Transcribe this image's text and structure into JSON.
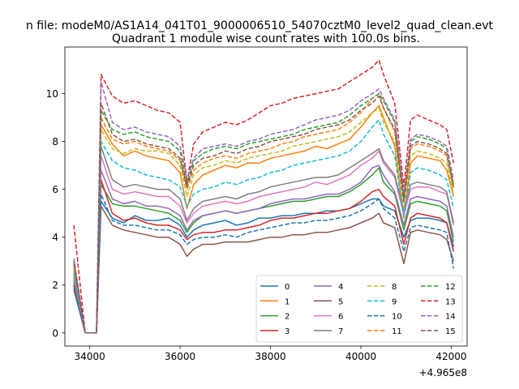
{
  "figure_title": "n file: modeM0/AS1A14_041T01_9000006510_54070cztM0_level2_quad_clean.evt",
  "chart_data": {
    "type": "line",
    "title": "Quadrant 1 module wise count rates with 100.0s bins.",
    "xlabel": "",
    "ylabel": "",
    "x_offset_label": "+4.965e8",
    "xlim": [
      33450,
      42350
    ],
    "ylim": [
      -0.55,
      11.95
    ],
    "x_ticks": [
      34000,
      36000,
      38000,
      40000,
      42000
    ],
    "x_tick_labels": [
      "34000",
      "36000",
      "38000",
      "40000",
      "42000"
    ],
    "y_ticks": [
      0,
      2,
      4,
      6,
      8,
      10
    ],
    "y_tick_labels": [
      "0",
      "2",
      "4",
      "6",
      "8",
      "10"
    ],
    "grid": false,
    "legend_placement": "lower-right",
    "legend_columns": 4,
    "x": [
      33650,
      33900,
      34150,
      34250,
      34500,
      34750,
      35000,
      35250,
      35500,
      35750,
      36000,
      36150,
      36300,
      36500,
      36750,
      37000,
      37250,
      37500,
      37750,
      38000,
      38250,
      38500,
      38750,
      39000,
      39250,
      39500,
      39750,
      40000,
      40250,
      40400,
      40500,
      40750,
      40950,
      41100,
      41250,
      41500,
      41750,
      41900,
      42050
    ],
    "series": [
      {
        "name": "0",
        "color": "#1f77b4",
        "dash": "solid",
        "values": [
          2.0,
          0,
          0,
          5.5,
          4.8,
          4.6,
          4.9,
          4.7,
          4.7,
          4.8,
          4.5,
          4.0,
          4.3,
          4.5,
          4.6,
          4.7,
          4.5,
          4.6,
          4.8,
          4.8,
          4.9,
          4.9,
          5.0,
          5.0,
          5.1,
          5.1,
          5.2,
          5.4,
          5.6,
          5.6,
          5.3,
          5.1,
          4.0,
          4.7,
          4.8,
          4.8,
          4.7,
          4.6,
          3.6
        ]
      },
      {
        "name": "1",
        "color": "#ff7f0e",
        "dash": "solid",
        "values": [
          2.6,
          0,
          0,
          8.7,
          7.9,
          7.4,
          7.6,
          7.4,
          7.3,
          7.2,
          6.7,
          5.2,
          6.2,
          6.6,
          6.8,
          7.0,
          6.9,
          7.1,
          7.1,
          7.3,
          7.4,
          7.5,
          7.6,
          7.8,
          7.7,
          7.9,
          8.1,
          8.6,
          9.2,
          9.5,
          9.0,
          7.8,
          4.8,
          7.1,
          7.4,
          7.3,
          7.2,
          6.8,
          5.7
        ]
      },
      {
        "name": "2",
        "color": "#2ca02c",
        "dash": "solid",
        "values": [
          2.1,
          0,
          0,
          6.2,
          5.4,
          5.3,
          5.3,
          5.2,
          5.1,
          5.0,
          4.7,
          4.2,
          4.6,
          4.9,
          5.0,
          5.1,
          5.0,
          5.1,
          5.2,
          5.3,
          5.4,
          5.5,
          5.5,
          5.6,
          5.7,
          5.7,
          5.9,
          6.2,
          6.6,
          6.9,
          6.3,
          5.8,
          4.3,
          5.4,
          5.5,
          5.4,
          5.3,
          5.1,
          3.8
        ]
      },
      {
        "name": "3",
        "color": "#d62728",
        "dash": "solid",
        "values": [
          2.0,
          0,
          0,
          6.4,
          5.0,
          4.7,
          4.8,
          4.6,
          4.5,
          4.5,
          4.3,
          3.9,
          4.1,
          4.2,
          4.2,
          4.3,
          4.3,
          4.4,
          4.5,
          4.7,
          4.8,
          4.8,
          4.9,
          5.0,
          5.0,
          5.1,
          5.2,
          5.5,
          5.9,
          6.0,
          5.7,
          5.3,
          3.7,
          4.8,
          5.0,
          4.9,
          4.8,
          4.6,
          3.4
        ]
      },
      {
        "name": "4",
        "color": "#9467bd",
        "dash": "solid",
        "values": [
          2.2,
          0,
          0,
          6.8,
          5.6,
          5.4,
          5.5,
          5.3,
          5.3,
          5.2,
          4.9,
          4.3,
          4.7,
          4.9,
          5.0,
          5.1,
          5.0,
          5.1,
          5.2,
          5.4,
          5.5,
          5.6,
          5.6,
          5.7,
          5.8,
          5.8,
          6.0,
          6.3,
          6.9,
          7.0,
          6.6,
          5.9,
          4.5,
          5.6,
          5.7,
          5.6,
          5.5,
          5.3,
          4.0
        ]
      },
      {
        "name": "5",
        "color": "#8c564b",
        "dash": "solid",
        "values": [
          1.8,
          0,
          0,
          5.3,
          4.5,
          4.3,
          4.2,
          4.1,
          4.0,
          4.0,
          3.7,
          3.2,
          3.5,
          3.7,
          3.7,
          3.8,
          3.8,
          3.8,
          3.9,
          4.0,
          4.0,
          4.1,
          4.1,
          4.2,
          4.2,
          4.3,
          4.4,
          4.6,
          4.8,
          5.0,
          4.6,
          4.4,
          2.9,
          4.2,
          4.3,
          4.2,
          4.1,
          3.9,
          3.0
        ]
      },
      {
        "name": "6",
        "color": "#e377c2",
        "dash": "solid",
        "values": [
          2.3,
          0,
          0,
          7.4,
          6.0,
          5.8,
          5.9,
          5.8,
          5.7,
          5.7,
          5.3,
          4.6,
          5.0,
          5.3,
          5.4,
          5.5,
          5.4,
          5.5,
          5.7,
          5.8,
          5.9,
          6.0,
          6.1,
          6.3,
          6.2,
          6.4,
          6.6,
          7.0,
          7.3,
          7.6,
          7.1,
          6.5,
          4.9,
          6.0,
          6.1,
          6.1,
          5.9,
          5.8,
          4.5
        ]
      },
      {
        "name": "7",
        "color": "#7f7f7f",
        "dash": "solid",
        "values": [
          2.4,
          0,
          0,
          7.8,
          6.4,
          6.1,
          6.2,
          6.1,
          6.0,
          6.0,
          5.6,
          4.7,
          5.2,
          5.5,
          5.6,
          5.7,
          5.6,
          5.8,
          5.9,
          6.1,
          6.2,
          6.3,
          6.4,
          6.5,
          6.5,
          6.6,
          6.9,
          7.2,
          7.5,
          7.7,
          7.2,
          6.6,
          5.1,
          6.2,
          6.3,
          6.2,
          6.1,
          5.9,
          4.6
        ]
      },
      {
        "name": "8",
        "color": "#bcbd22",
        "dash": "dashed",
        "values": [
          2.7,
          0,
          0,
          8.5,
          7.7,
          7.5,
          7.7,
          7.6,
          7.6,
          7.5,
          7.0,
          5.7,
          6.6,
          6.9,
          7.0,
          7.2,
          7.1,
          7.3,
          7.4,
          7.5,
          7.6,
          7.8,
          7.9,
          8.0,
          8.1,
          8.2,
          8.4,
          8.8,
          9.2,
          9.4,
          8.8,
          8.0,
          5.2,
          7.4,
          7.6,
          7.5,
          7.3,
          7.1,
          5.8
        ]
      },
      {
        "name": "9",
        "color": "#17becf",
        "dash": "dashed",
        "values": [
          2.5,
          0,
          0,
          8.0,
          7.2,
          6.9,
          6.8,
          6.6,
          6.5,
          6.4,
          6.1,
          5.3,
          5.8,
          6.0,
          6.1,
          6.3,
          6.2,
          6.4,
          6.5,
          6.7,
          6.8,
          7.0,
          7.1,
          7.2,
          7.3,
          7.4,
          7.6,
          8.0,
          8.6,
          8.9,
          8.3,
          7.4,
          4.9,
          6.7,
          6.9,
          6.8,
          6.6,
          6.4,
          5.2
        ]
      },
      {
        "name": "10",
        "color": "#1f77b4",
        "dash": "dashed",
        "values": [
          1.9,
          0,
          0,
          5.8,
          4.7,
          4.5,
          4.5,
          4.4,
          4.3,
          4.3,
          4.1,
          3.7,
          3.9,
          4.0,
          4.0,
          4.1,
          4.0,
          4.2,
          4.3,
          4.4,
          4.5,
          4.6,
          4.6,
          4.7,
          4.7,
          4.8,
          4.9,
          5.1,
          5.4,
          5.6,
          5.2,
          4.8,
          3.4,
          4.4,
          4.5,
          4.4,
          4.3,
          4.2,
          2.7
        ]
      },
      {
        "name": "11",
        "color": "#ff7f0e",
        "dash": "dashed",
        "values": [
          2.8,
          0,
          0,
          9.0,
          8.1,
          7.9,
          8.0,
          7.8,
          7.7,
          7.6,
          7.2,
          6.0,
          6.8,
          7.1,
          7.3,
          7.4,
          7.3,
          7.5,
          7.6,
          7.7,
          7.9,
          8.0,
          8.2,
          8.3,
          8.4,
          8.5,
          8.8,
          9.2,
          9.8,
          10.0,
          9.4,
          8.4,
          5.5,
          7.7,
          7.9,
          7.8,
          7.6,
          7.4,
          6.0
        ]
      },
      {
        "name": "12",
        "color": "#2ca02c",
        "dash": "dashed",
        "values": [
          3.0,
          0,
          0,
          9.3,
          8.5,
          8.3,
          8.4,
          8.2,
          8.1,
          8.0,
          7.6,
          6.2,
          7.2,
          7.5,
          7.7,
          7.8,
          7.7,
          7.9,
          8.0,
          8.1,
          8.2,
          8.3,
          8.5,
          8.6,
          8.7,
          8.8,
          9.1,
          9.5,
          9.8,
          10.0,
          9.7,
          8.8,
          5.6,
          8.0,
          8.2,
          8.1,
          7.9,
          7.7,
          6.2
        ]
      },
      {
        "name": "13",
        "color": "#d62728",
        "dash": "dashed",
        "values": [
          4.5,
          0,
          0,
          10.8,
          9.9,
          9.6,
          9.7,
          9.5,
          9.3,
          9.2,
          8.8,
          6.3,
          7.9,
          8.4,
          8.6,
          8.8,
          8.7,
          8.9,
          9.2,
          9.5,
          9.6,
          9.8,
          9.9,
          10.0,
          10.1,
          10.2,
          10.5,
          10.8,
          11.1,
          11.4,
          10.8,
          9.6,
          6.1,
          8.9,
          9.1,
          8.9,
          8.7,
          8.5,
          7.1
        ]
      },
      {
        "name": "14",
        "color": "#9467bd",
        "dash": "dashed",
        "values": [
          3.1,
          0,
          0,
          10.5,
          8.8,
          8.5,
          8.6,
          8.4,
          8.3,
          8.2,
          7.8,
          6.4,
          7.3,
          7.7,
          7.8,
          7.9,
          7.8,
          8.0,
          8.1,
          8.3,
          8.4,
          8.5,
          8.7,
          8.9,
          9.0,
          9.1,
          9.3,
          9.7,
          10.0,
          10.2,
          9.8,
          8.9,
          5.8,
          8.1,
          8.3,
          8.2,
          8.0,
          7.8,
          6.4
        ]
      },
      {
        "name": "15",
        "color": "#8c564b",
        "dash": "dashed",
        "values": [
          2.9,
          0,
          0,
          9.6,
          8.3,
          8.0,
          8.1,
          7.9,
          7.8,
          7.7,
          7.3,
          6.1,
          7.0,
          7.3,
          7.4,
          7.6,
          7.5,
          7.7,
          7.8,
          8.0,
          8.1,
          8.2,
          8.3,
          8.5,
          8.6,
          8.7,
          8.9,
          9.3,
          9.6,
          9.9,
          9.4,
          8.5,
          5.5,
          7.8,
          8.0,
          7.9,
          7.7,
          7.5,
          6.1
        ]
      }
    ]
  }
}
